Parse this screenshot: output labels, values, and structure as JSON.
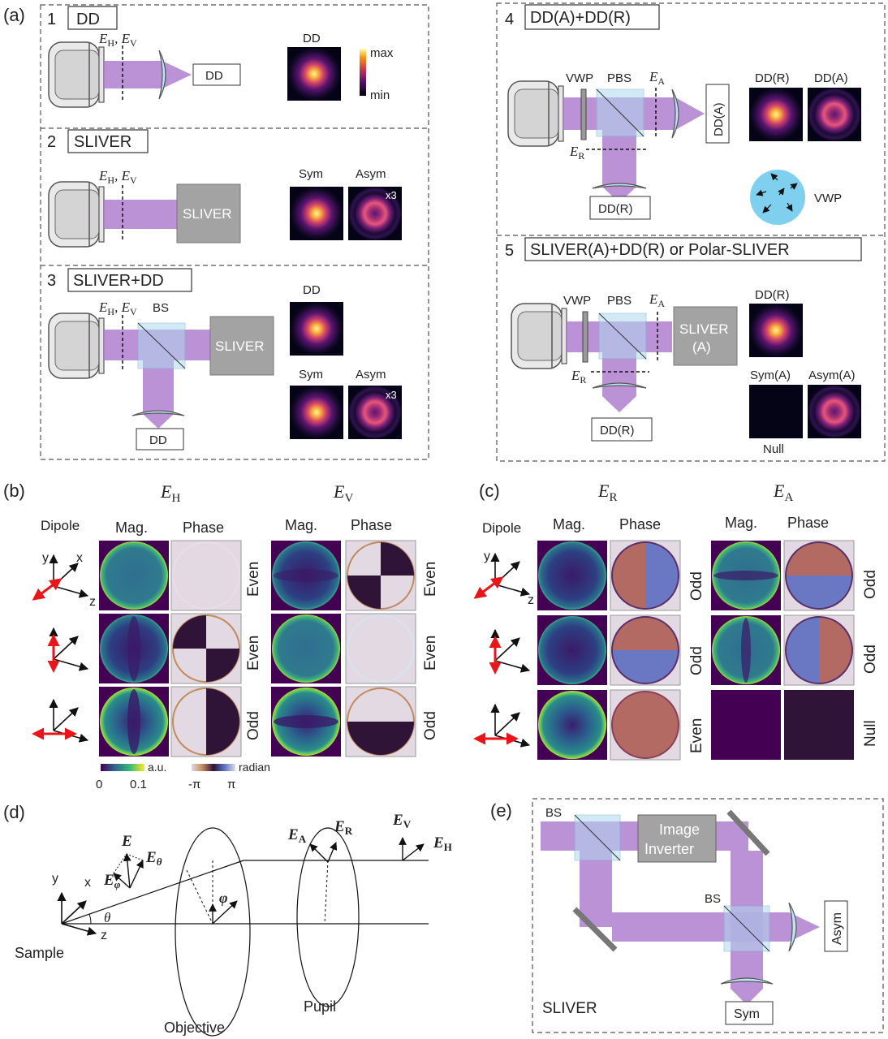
{
  "panels": {
    "a": "(a)",
    "b": "(b)",
    "c": "(c)",
    "d": "(d)",
    "e": "(e)"
  },
  "a": {
    "s1": {
      "num": "1",
      "title": "DD",
      "det": "DD",
      "img_label": "DD",
      "cb_max": "max",
      "cb_min": "min"
    },
    "s2": {
      "num": "2",
      "title": "SLIVER",
      "box": "SLIVER",
      "sym": "Sym",
      "asym": "Asym",
      "x3": "x3"
    },
    "s3": {
      "num": "3",
      "title": "SLIVER+DD",
      "bs": "BS",
      "box": "SLIVER",
      "det": "DD",
      "img_dd": "DD",
      "sym": "Sym",
      "asym": "Asym",
      "x3": "x3"
    },
    "s4": {
      "num": "4",
      "title": "DD(A)+DD(R)",
      "vwp": "VWP",
      "pbs": "PBS",
      "det_a": "DD(A)",
      "det_r": "DD(R)",
      "img_r": "DD(R)",
      "img_a": "DD(A)",
      "vwp_label": "VWP"
    },
    "s5": {
      "num": "5",
      "title": "SLIVER(A)+DD(R) or Polar-SLIVER",
      "vwp": "VWP",
      "pbs": "PBS",
      "box1": "SLIVER",
      "box2": "(A)",
      "det_r": "DD(R)",
      "img_r": "DD(R)",
      "sym_a": "Sym(A)",
      "asym_a": "Asym(A)",
      "null": "Null"
    }
  },
  "b": {
    "dipole": "Dipole",
    "mag": "Mag.",
    "phase": "Phase",
    "parity_h": [
      "Even",
      "Even",
      "Odd"
    ],
    "parity_v": [
      "Even",
      "Even",
      "Odd"
    ],
    "cb_mag_unit": "a.u.",
    "cb_mag_min": "0",
    "cb_mag_max": "0.1",
    "cb_ph_unit": "radian",
    "cb_ph_min": "-π",
    "cb_ph_max": "π"
  },
  "c": {
    "dipole": "Dipole",
    "mag": "Mag.",
    "phase": "Phase",
    "parity_r": [
      "Odd",
      "Odd",
      "Even"
    ],
    "parity_a": [
      "Odd",
      "Odd",
      "Null"
    ]
  },
  "axes": {
    "x": "x",
    "y": "y",
    "z": "z"
  },
  "d": {
    "sample": "Sample",
    "objective": "Objective",
    "pupil": "Pupil"
  },
  "e": {
    "bs1": "BS",
    "bs2": "BS",
    "inv1": "Image",
    "inv2": "Inverter",
    "asym": "Asym",
    "sym": "Sym",
    "sliver": "SLIVER"
  },
  "colors": {
    "beam": "#b07fcf",
    "lens": "#bfe3f6",
    "cube": "#aed8ef",
    "sliver_box": "#a3a3a3",
    "vwp": "#7fd0ef",
    "dipole": "#e8161b"
  }
}
